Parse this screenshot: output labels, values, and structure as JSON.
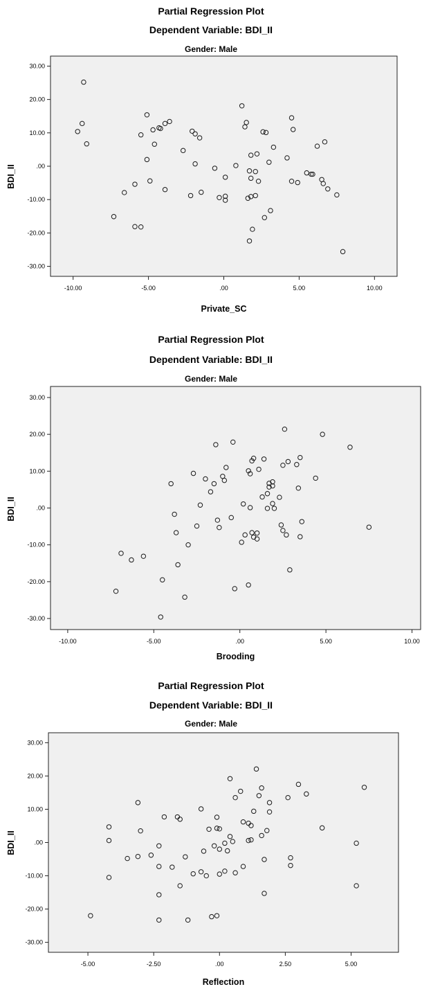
{
  "chart_data": [
    {
      "type": "scatter",
      "title": "Partial Regression Plot",
      "subtitle": "Dependent Variable: BDI_II",
      "panel_label": "Gender: Male",
      "xlabel": "Private_SC",
      "ylabel": "BDI_II",
      "xlim": [
        -11.5,
        11.5
      ],
      "ylim": [
        -33,
        33
      ],
      "x_ticks": [
        -10,
        -5,
        0,
        5,
        10
      ],
      "x_tick_labels": [
        "-10.00",
        "-5.00",
        ".00",
        "5.00",
        "10.00"
      ],
      "y_ticks": [
        30,
        20,
        10,
        0,
        -10,
        -20,
        -30
      ],
      "y_tick_labels": [
        "30.00",
        "20.00",
        "10.00",
        ".00",
        "-10.00",
        "-20.00",
        "-30.00"
      ],
      "grid": false,
      "points": [
        [
          -9.3,
          25.2
        ],
        [
          -9.4,
          12.8
        ],
        [
          -9.7,
          10.4
        ],
        [
          -9.1,
          6.7
        ],
        [
          -7.3,
          -15.1
        ],
        [
          -6.6,
          -7.9
        ],
        [
          -5.9,
          -5.4
        ],
        [
          -5.9,
          -18.1
        ],
        [
          -5.5,
          9.4
        ],
        [
          -5.5,
          -18.2
        ],
        [
          -5.1,
          15.4
        ],
        [
          -5.1,
          2.0
        ],
        [
          -4.9,
          -4.4
        ],
        [
          -4.7,
          10.9
        ],
        [
          -4.6,
          6.6
        ],
        [
          -4.3,
          11.5
        ],
        [
          -4.2,
          11.3
        ],
        [
          -3.9,
          12.8
        ],
        [
          -3.9,
          -7.0
        ],
        [
          -3.6,
          13.4
        ],
        [
          -2.7,
          4.7
        ],
        [
          -2.2,
          -8.8
        ],
        [
          -2.1,
          10.5
        ],
        [
          -1.9,
          9.7
        ],
        [
          -1.9,
          0.7
        ],
        [
          -1.6,
          8.5
        ],
        [
          -1.5,
          -7.8
        ],
        [
          -0.6,
          -0.6
        ],
        [
          -0.3,
          -9.4
        ],
        [
          0.1,
          -3.3
        ],
        [
          0.1,
          -9.0
        ],
        [
          0.1,
          -10.2
        ],
        [
          0.8,
          0.2
        ],
        [
          1.2,
          18.1
        ],
        [
          1.4,
          11.8
        ],
        [
          1.5,
          13.1
        ],
        [
          1.6,
          -9.6
        ],
        [
          1.7,
          -1.4
        ],
        [
          1.7,
          -22.4
        ],
        [
          1.8,
          3.3
        ],
        [
          1.8,
          -3.6
        ],
        [
          1.8,
          -9.1
        ],
        [
          1.9,
          -18.9
        ],
        [
          2.1,
          -8.8
        ],
        [
          2.1,
          -1.6
        ],
        [
          2.2,
          3.7
        ],
        [
          2.3,
          -4.5
        ],
        [
          2.6,
          10.3
        ],
        [
          2.7,
          -15.4
        ],
        [
          2.8,
          10.1
        ],
        [
          3.0,
          1.2
        ],
        [
          3.1,
          -13.3
        ],
        [
          3.3,
          5.7
        ],
        [
          4.2,
          2.5
        ],
        [
          4.5,
          14.5
        ],
        [
          4.5,
          -4.5
        ],
        [
          4.6,
          11.0
        ],
        [
          4.9,
          -4.9
        ],
        [
          5.5,
          -2.0
        ],
        [
          5.8,
          -2.4
        ],
        [
          5.9,
          -2.4
        ],
        [
          6.2,
          6.0
        ],
        [
          6.5,
          -4.0
        ],
        [
          6.6,
          -5.2
        ],
        [
          6.7,
          7.3
        ],
        [
          6.9,
          -6.8
        ],
        [
          7.5,
          -8.6
        ],
        [
          7.9,
          -25.6
        ]
      ]
    },
    {
      "type": "scatter",
      "title": "Partial Regression Plot",
      "subtitle": "Dependent Variable: BDI_II",
      "panel_label": "Gender: Male",
      "xlabel": "Brooding",
      "ylabel": "BDI_II",
      "xlim": [
        -11,
        10.5
      ],
      "ylim": [
        -33,
        33
      ],
      "x_ticks": [
        -10,
        -5,
        0,
        5,
        10
      ],
      "x_tick_labels": [
        "-10.00",
        "-5.00",
        ".00",
        "5.00",
        "10.00"
      ],
      "y_ticks": [
        30,
        20,
        10,
        0,
        -10,
        -20,
        -30
      ],
      "y_tick_labels": [
        "30.00",
        "20.00",
        "10.00",
        ".00",
        "-10.00",
        "-20.00",
        "-30.00"
      ],
      "grid": false,
      "points": [
        [
          -7.2,
          -22.6
        ],
        [
          -6.9,
          -12.3
        ],
        [
          -6.3,
          -14.1
        ],
        [
          -5.6,
          -13.1
        ],
        [
          -4.6,
          -29.6
        ],
        [
          -4.5,
          -19.5
        ],
        [
          -4.0,
          6.6
        ],
        [
          -3.8,
          -1.7
        ],
        [
          -3.7,
          -6.7
        ],
        [
          -3.6,
          -15.4
        ],
        [
          -3.2,
          -24.2
        ],
        [
          -3.0,
          -10.0
        ],
        [
          -2.7,
          9.4
        ],
        [
          -2.5,
          -4.9
        ],
        [
          -2.3,
          0.8
        ],
        [
          -2.0,
          7.9
        ],
        [
          -1.7,
          4.4
        ],
        [
          -1.5,
          6.6
        ],
        [
          -1.4,
          17.2
        ],
        [
          -1.3,
          -3.3
        ],
        [
          -1.2,
          -5.3
        ],
        [
          -1.0,
          8.6
        ],
        [
          -0.9,
          7.5
        ],
        [
          -0.8,
          11.0
        ],
        [
          -0.5,
          -2.6
        ],
        [
          -0.4,
          17.9
        ],
        [
          -0.3,
          -21.9
        ],
        [
          0.1,
          -9.3
        ],
        [
          0.2,
          1.1
        ],
        [
          0.3,
          -7.3
        ],
        [
          0.5,
          -20.9
        ],
        [
          0.5,
          10.1
        ],
        [
          0.6,
          9.3
        ],
        [
          0.6,
          0.1
        ],
        [
          0.7,
          12.8
        ],
        [
          0.7,
          -6.7
        ],
        [
          0.8,
          13.5
        ],
        [
          0.8,
          -7.9
        ],
        [
          1.0,
          -6.8
        ],
        [
          1.0,
          -8.4
        ],
        [
          1.1,
          10.5
        ],
        [
          1.3,
          3.0
        ],
        [
          1.4,
          13.3
        ],
        [
          1.6,
          3.9
        ],
        [
          1.6,
          -0.1
        ],
        [
          1.7,
          6.7
        ],
        [
          1.7,
          5.7
        ],
        [
          1.9,
          7.1
        ],
        [
          1.9,
          6.0
        ],
        [
          1.9,
          1.2
        ],
        [
          2.0,
          -0.1
        ],
        [
          2.3,
          2.9
        ],
        [
          2.4,
          -4.6
        ],
        [
          2.5,
          11.6
        ],
        [
          2.5,
          -6.1
        ],
        [
          2.6,
          21.4
        ],
        [
          2.7,
          -7.3
        ],
        [
          2.8,
          12.6
        ],
        [
          2.9,
          -16.8
        ],
        [
          3.3,
          11.8
        ],
        [
          3.4,
          5.4
        ],
        [
          3.5,
          13.7
        ],
        [
          3.5,
          -7.8
        ],
        [
          3.6,
          -3.7
        ],
        [
          4.4,
          8.1
        ],
        [
          4.8,
          20.0
        ],
        [
          6.4,
          16.5
        ],
        [
          7.5,
          -5.2
        ]
      ]
    },
    {
      "type": "scatter",
      "title": "Partial Regression Plot",
      "subtitle": "Dependent Variable: BDI_II",
      "panel_label": "Gender: Male",
      "xlabel": "Reflection",
      "ylabel": "BDI_II",
      "xlim": [
        -6.5,
        6.8
      ],
      "ylim": [
        -33,
        33
      ],
      "x_ticks": [
        -5,
        -2.5,
        0,
        2.5,
        5
      ],
      "x_tick_labels": [
        "-5.00",
        "-2.50",
        ".00",
        "2.50",
        "5.00"
      ],
      "y_ticks": [
        30,
        20,
        10,
        0,
        -10,
        -20,
        -30
      ],
      "y_tick_labels": [
        "30.00",
        "20.00",
        "10.00",
        ".00",
        "-10.00",
        "-20.00",
        "-30.00"
      ],
      "grid": false,
      "points": [
        [
          -4.9,
          -22.0
        ],
        [
          -4.2,
          4.7
        ],
        [
          -4.2,
          0.6
        ],
        [
          -4.2,
          -10.5
        ],
        [
          -3.5,
          -4.8
        ],
        [
          -3.1,
          12.0
        ],
        [
          -3.1,
          -4.2
        ],
        [
          -3.0,
          3.5
        ],
        [
          -2.6,
          -3.8
        ],
        [
          -2.3,
          -1.0
        ],
        [
          -2.3,
          -7.2
        ],
        [
          -2.3,
          -15.7
        ],
        [
          -2.3,
          -23.3
        ],
        [
          -2.1,
          7.7
        ],
        [
          -1.8,
          -7.4
        ],
        [
          -1.6,
          7.7
        ],
        [
          -1.5,
          7.0
        ],
        [
          -1.5,
          -13.0
        ],
        [
          -1.3,
          -4.3
        ],
        [
          -1.2,
          -23.3
        ],
        [
          -1.0,
          -9.4
        ],
        [
          -0.7,
          10.1
        ],
        [
          -0.7,
          -8.8
        ],
        [
          -0.6,
          -2.6
        ],
        [
          -0.5,
          -10.0
        ],
        [
          -0.4,
          4.0
        ],
        [
          -0.3,
          -22.3
        ],
        [
          -0.2,
          -1.0
        ],
        [
          -0.1,
          7.6
        ],
        [
          -0.1,
          4.3
        ],
        [
          -0.1,
          -22.0
        ],
        [
          0.0,
          4.1
        ],
        [
          0.0,
          -2.0
        ],
        [
          0.0,
          -9.5
        ],
        [
          0.2,
          -0.2
        ],
        [
          0.2,
          -8.6
        ],
        [
          0.3,
          -2.5
        ],
        [
          0.4,
          19.2
        ],
        [
          0.4,
          1.8
        ],
        [
          0.5,
          0.3
        ],
        [
          0.6,
          13.5
        ],
        [
          0.6,
          -9.1
        ],
        [
          0.8,
          15.4
        ],
        [
          0.9,
          6.2
        ],
        [
          0.9,
          -7.2
        ],
        [
          1.1,
          5.8
        ],
        [
          1.1,
          0.6
        ],
        [
          1.2,
          5.1
        ],
        [
          1.2,
          0.8
        ],
        [
          1.3,
          9.4
        ],
        [
          1.4,
          22.1
        ],
        [
          1.5,
          14.1
        ],
        [
          1.6,
          2.1
        ],
        [
          1.6,
          16.4
        ],
        [
          1.7,
          -5.1
        ],
        [
          1.7,
          -15.3
        ],
        [
          1.8,
          3.6
        ],
        [
          1.9,
          12.0
        ],
        [
          1.9,
          9.2
        ],
        [
          2.6,
          13.5
        ],
        [
          2.7,
          -4.6
        ],
        [
          2.7,
          -6.9
        ],
        [
          3.0,
          17.5
        ],
        [
          3.3,
          14.6
        ],
        [
          3.9,
          4.4
        ],
        [
          5.2,
          -0.2
        ],
        [
          5.2,
          -13.0
        ],
        [
          5.5,
          16.6
        ]
      ]
    }
  ]
}
